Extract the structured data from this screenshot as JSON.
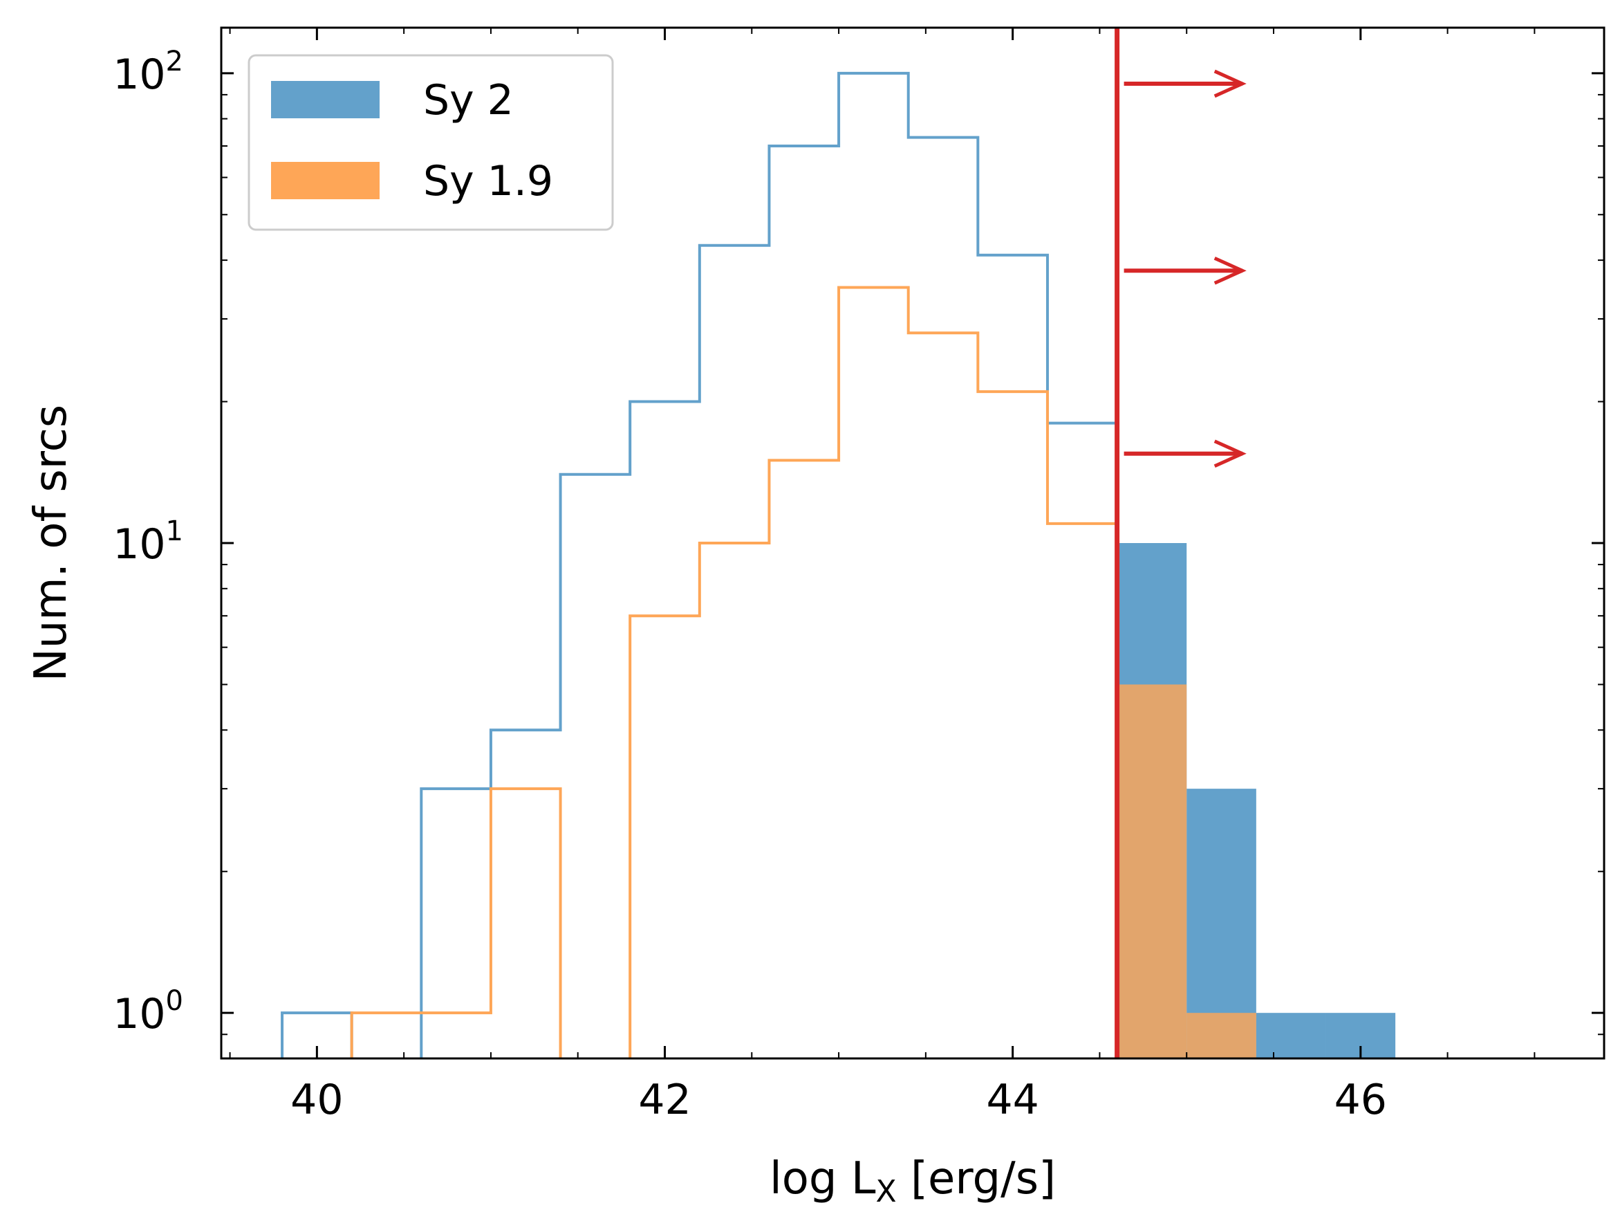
{
  "chart_data": {
    "type": "bar",
    "xlabel": "log L",
    "xlabel_subscript": "X",
    "xlabel_unit": " [erg/s]",
    "ylabel": "Num. of srcs",
    "x_scale": "linear",
    "y_scale": "log",
    "xlim": [
      39.45,
      47.4
    ],
    "ylim": [
      0.8,
      125
    ],
    "grid": false,
    "legend_position": "top-left",
    "x_ticks": [
      40,
      42,
      44,
      46
    ],
    "y_ticks": [
      {
        "base": "10",
        "exp": "0",
        "value": 1
      },
      {
        "base": "10",
        "exp": "1",
        "value": 10
      },
      {
        "base": "10",
        "exp": "2",
        "value": 100
      }
    ],
    "bin_edges": [
      39.8,
      40.2,
      40.6,
      41.0,
      41.4,
      41.8,
      42.2,
      42.6,
      43.0,
      43.4,
      43.8,
      44.2,
      44.6,
      45.0,
      45.4,
      45.8,
      46.2
    ],
    "threshold_x": 44.6,
    "arrow_y": [
      95,
      38,
      15.5
    ],
    "arrow_length": 0.72,
    "series": [
      {
        "name": "Sy 2",
        "color": "#63a1cb",
        "values": [
          1,
          0,
          3,
          4,
          14,
          20,
          43,
          70,
          100,
          73,
          41,
          18,
          10,
          3,
          1,
          1
        ]
      },
      {
        "name": "Sy 1.9",
        "color": "#fea657",
        "values": [
          0,
          1,
          1,
          3,
          0,
          7,
          10,
          15,
          35,
          28,
          21,
          11,
          5,
          1,
          0,
          0
        ]
      }
    ],
    "threshold_color": "#d62728"
  }
}
